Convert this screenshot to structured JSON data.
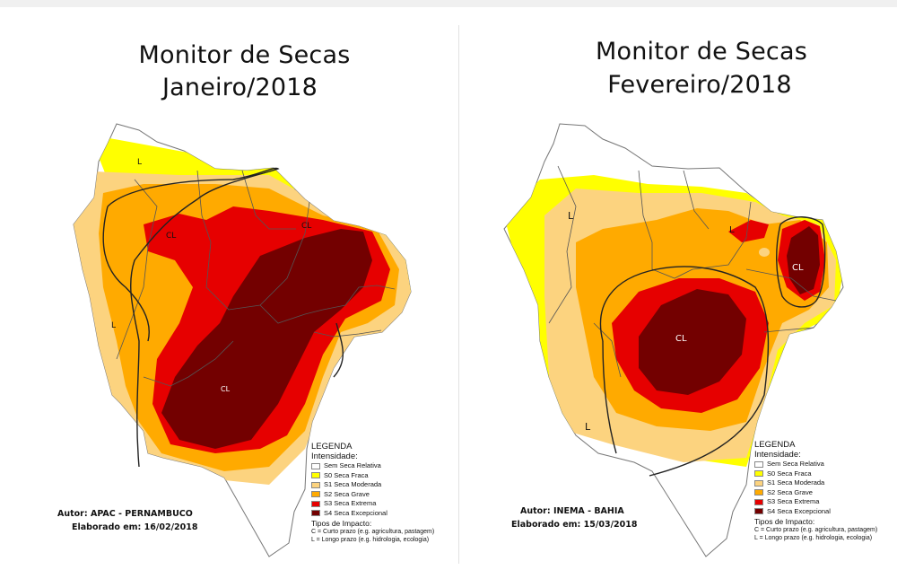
{
  "colors": {
    "none": "#ffffff",
    "s0": "#ffff00",
    "s1": "#fcd37f",
    "s2": "#ffaa00",
    "s3": "#e60000",
    "s4": "#730000"
  },
  "maps": [
    {
      "title_line1": "Monitor de Secas",
      "title_line2": "Janeiro/2018",
      "author": "Autor: APAC - PERNAMBUCO",
      "elaborated": "Elaborado em: 16/02/2018",
      "impact_labels": [
        "L",
        "CL",
        "CL",
        "L",
        "CL"
      ]
    },
    {
      "title_line1": "Monitor de Secas",
      "title_line2": "Fevereiro/2018",
      "author": "Autor: INEMA - BAHIA",
      "elaborated": "Elaborado em: 15/03/2018",
      "impact_labels": [
        "L",
        "L",
        "CL",
        "CL",
        "L"
      ]
    }
  ],
  "legend": {
    "title": "LEGENDA",
    "subtitle": "Intensidade:",
    "items": [
      {
        "label": "Sem Seca Relativa",
        "color_key": "none"
      },
      {
        "label": "S0 Seca Fraca",
        "color_key": "s0"
      },
      {
        "label": "S1 Seca Moderada",
        "color_key": "s1"
      },
      {
        "label": "S2 Seca Grave",
        "color_key": "s2"
      },
      {
        "label": "S3 Seca Extrema",
        "color_key": "s3"
      },
      {
        "label": "S4 Seca Excepcional",
        "color_key": "s4"
      }
    ],
    "impact_title": "Tipos de Impacto:",
    "impact_short": "C = Curto prazo (e.g. agricultura, pastagem)",
    "impact_long": "L = Longo prazo (e.g. hidrologia, ecologia)"
  }
}
